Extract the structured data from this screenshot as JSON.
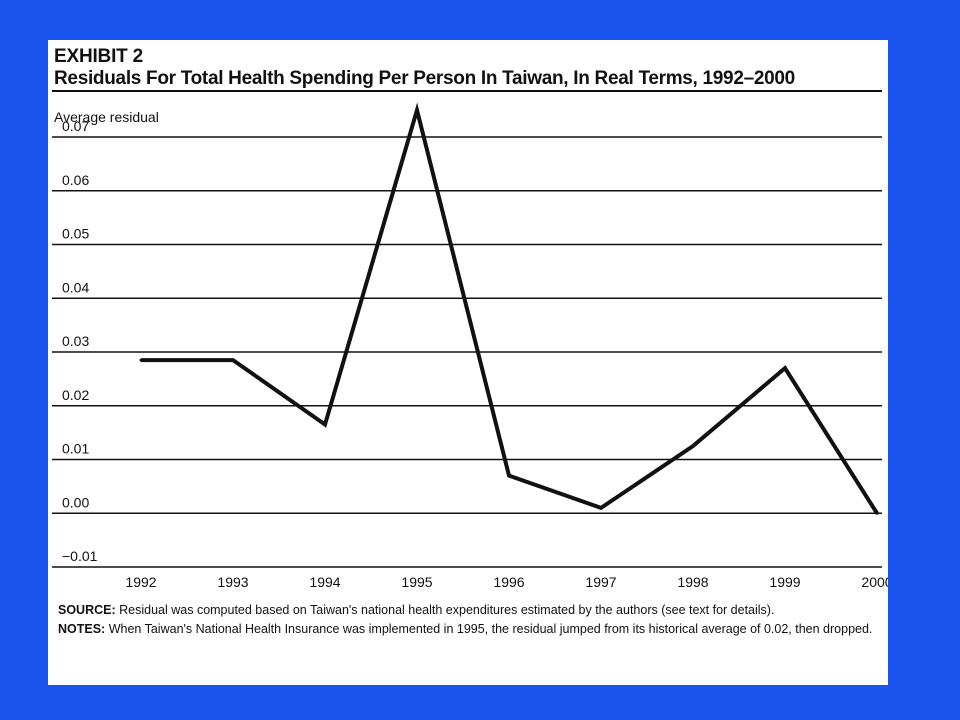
{
  "exhibit": "EXHIBIT 2",
  "footnotes": {
    "source_label": "SOURCE:",
    "source_text": " Residual was computed based on Taiwan's national health expenditures estimated by the authors (see text for details).",
    "notes_label": "NOTES:",
    "notes_text": " When Taiwan's National Health Insurance was implemented in 1995, the residual jumped from its historical average of 0.02, then dropped."
  },
  "chart_data": {
    "type": "line",
    "title": "Residuals For Total Health Spending Per Person In Taiwan, In Real Terms, 1992–2000",
    "ylabel": "Average residual",
    "xlabel": "",
    "x": [
      "1992",
      "1993",
      "1994",
      "1995",
      "1996",
      "1997",
      "1998",
      "1999",
      "2000"
    ],
    "series": [
      {
        "values": [
          0.0285,
          0.0285,
          0.0165,
          0.075,
          0.007,
          0.001,
          0.0125,
          0.027,
          0.0
        ]
      }
    ],
    "y_ticks": [
      "0.07",
      "0.06",
      "0.05",
      "0.04",
      "0.03",
      "0.02",
      "0.01",
      "0.00",
      "−0.01"
    ],
    "y_tick_values": [
      0.07,
      0.06,
      0.05,
      0.04,
      0.03,
      0.02,
      0.01,
      0.0,
      -0.01
    ],
    "ylim": [
      -0.01,
      0.07
    ],
    "grid": true,
    "line_color": "#111111"
  }
}
